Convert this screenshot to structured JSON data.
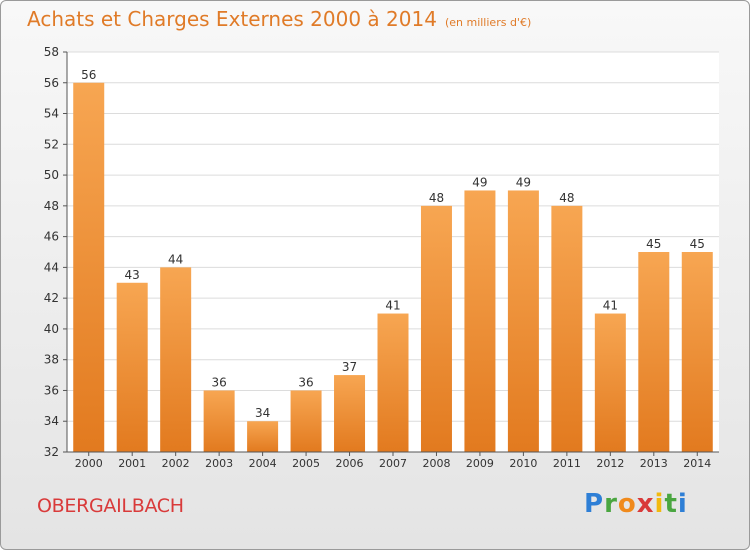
{
  "title": "Achats et Charges Externes 2000 à 2014",
  "subtitle": "(en milliers d'€)",
  "commune": "OBERGAILBACH",
  "logo": {
    "letters": [
      "P",
      "r",
      "o",
      "x",
      "i",
      "t",
      "i"
    ],
    "colors": [
      "#2e7fd6",
      "#4aa640",
      "#f08a1c",
      "#d93a3a",
      "#f2b90f",
      "#4aa640",
      "#2e7fd6"
    ]
  },
  "chart_data": {
    "type": "bar",
    "categories": [
      "2000",
      "2001",
      "2002",
      "2003",
      "2004",
      "2005",
      "2006",
      "2007",
      "2008",
      "2009",
      "2010",
      "2011",
      "2012",
      "2013",
      "2014"
    ],
    "values": [
      56,
      43,
      44,
      36,
      34,
      36,
      37,
      41,
      48,
      49,
      49,
      48,
      41,
      45,
      45
    ],
    "ylim": [
      32,
      58
    ],
    "yticks": [
      32,
      34,
      36,
      38,
      40,
      42,
      44,
      46,
      48,
      50,
      52,
      54,
      56,
      58
    ],
    "grid": true,
    "colors": {
      "bar_top": "#f7a652",
      "bar_bottom": "#e27a1f",
      "accent": "#e07b28"
    }
  }
}
